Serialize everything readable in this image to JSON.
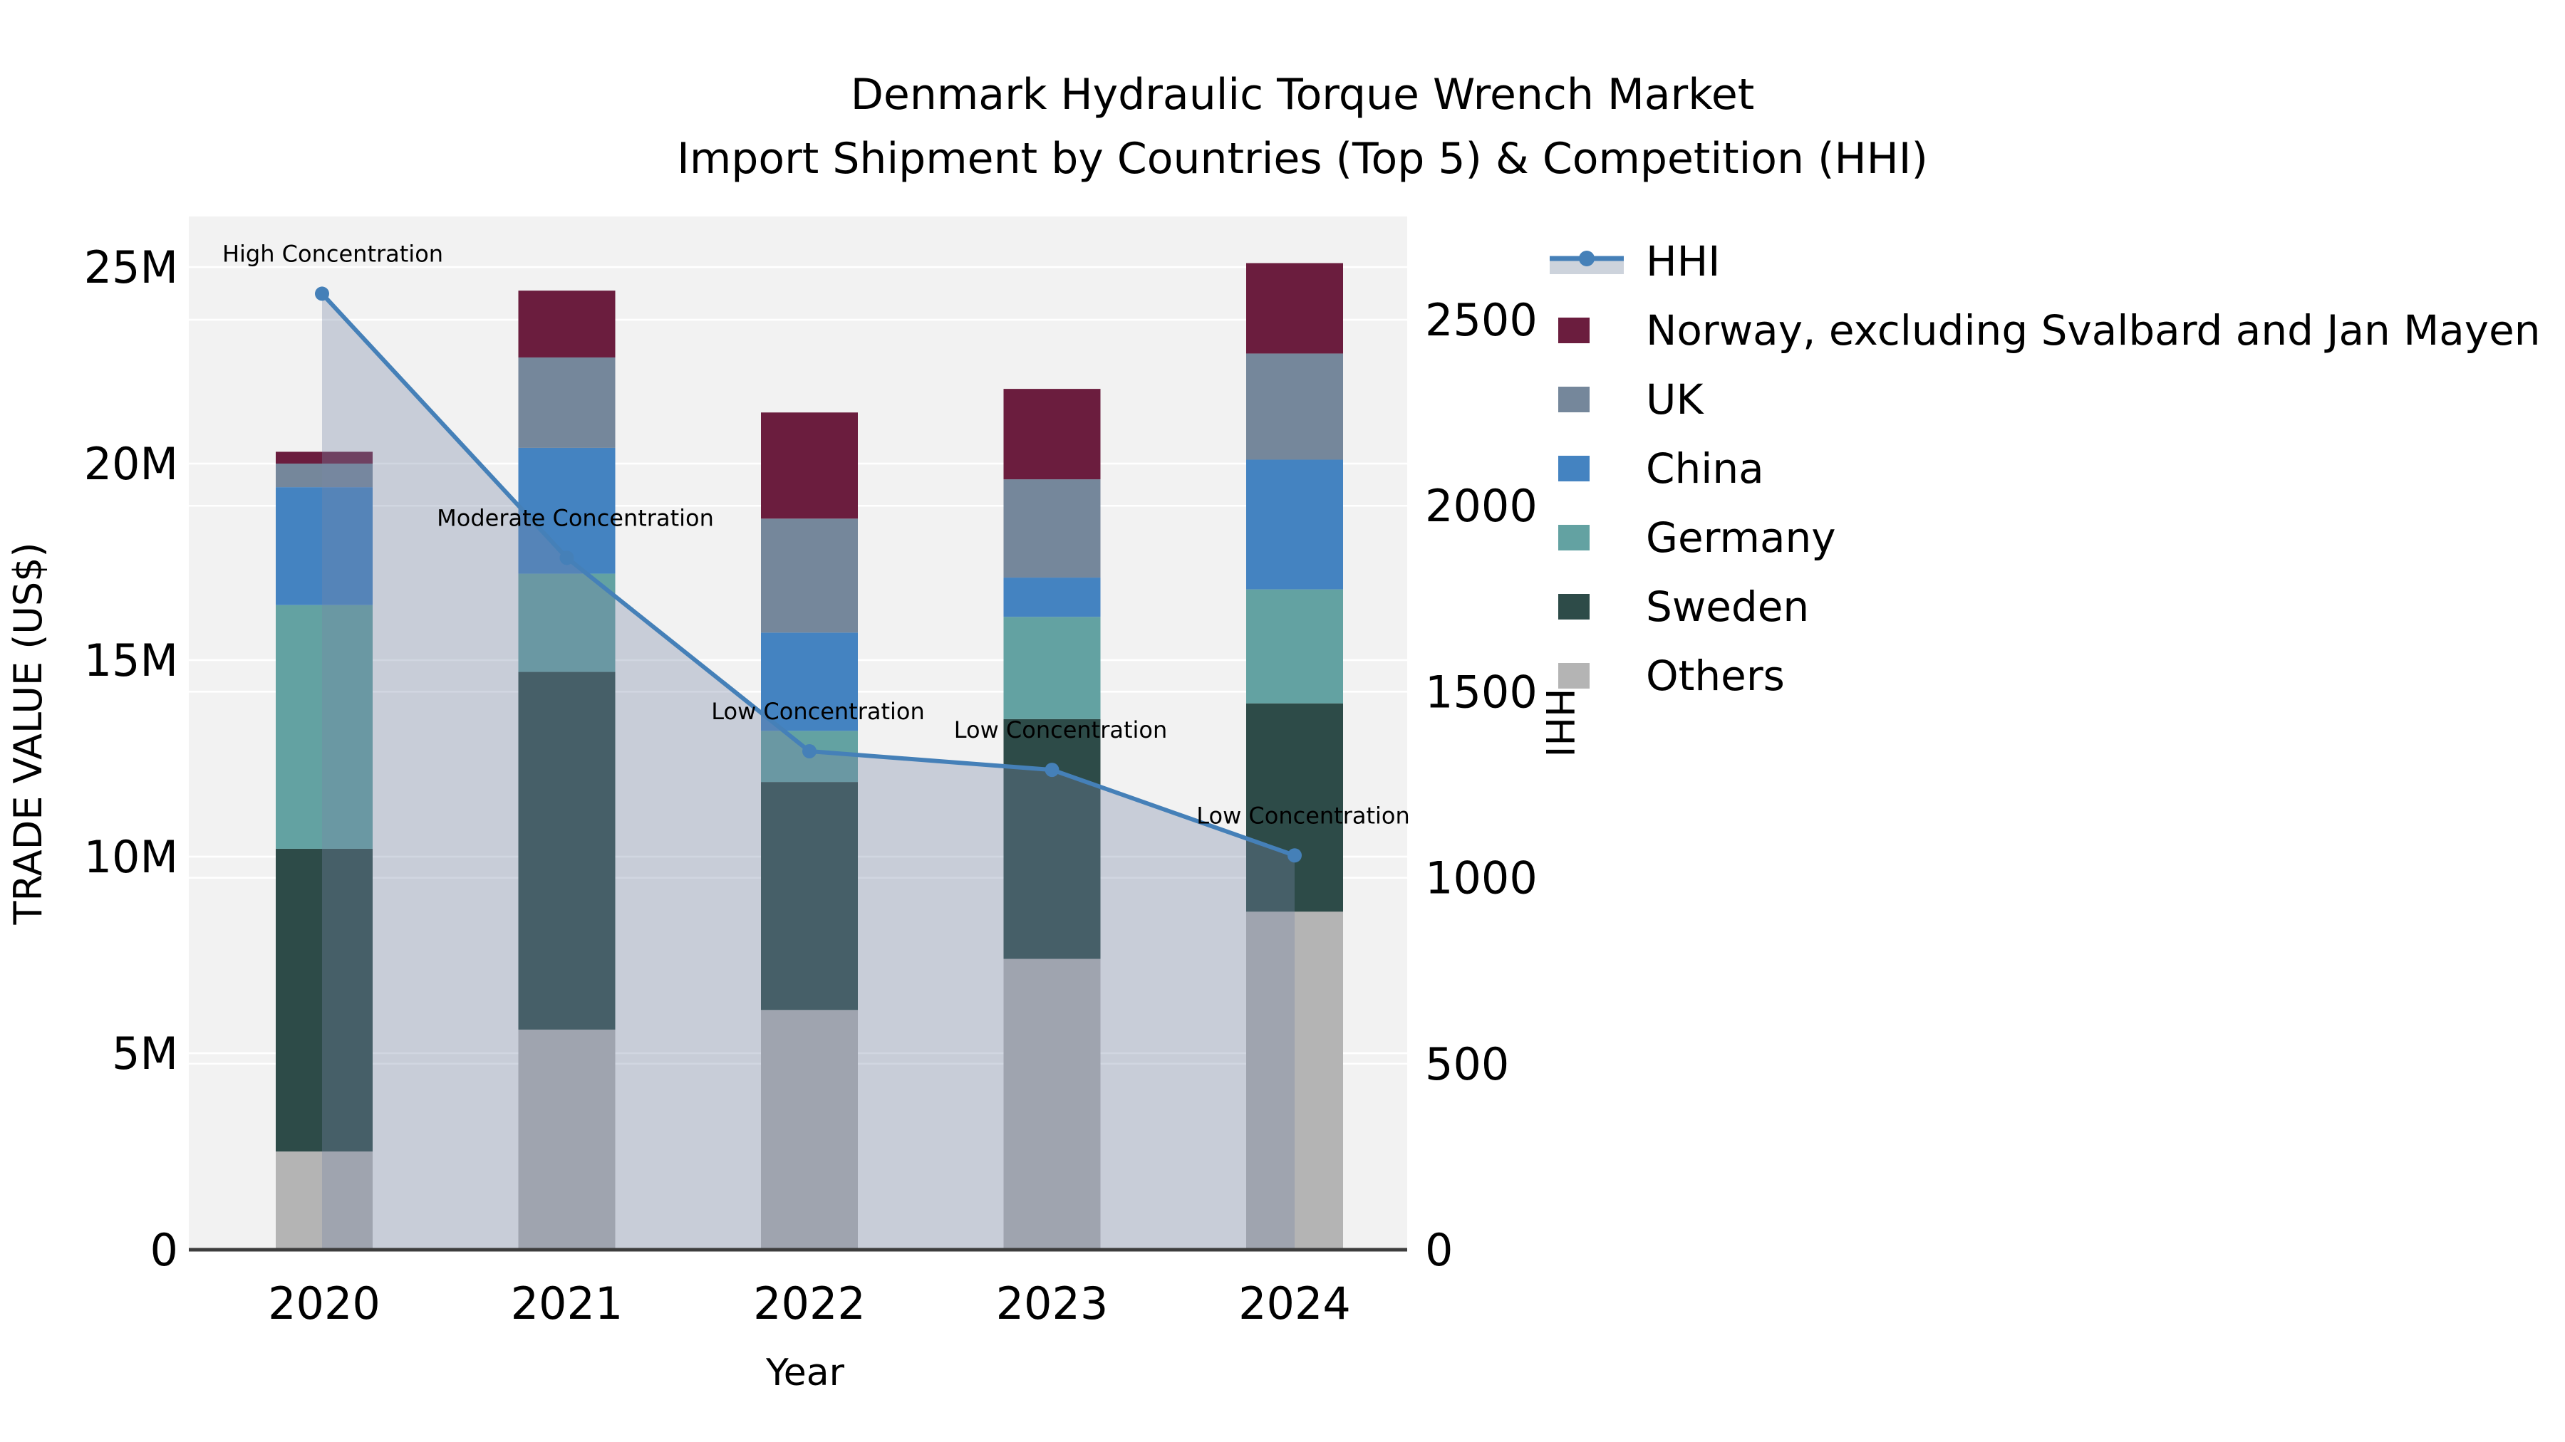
{
  "title": {
    "line1": "Denmark Hydraulic Torque Wrench Market",
    "line2": "Import Shipment by Countries (Top 5) & Competition (HHI)"
  },
  "axes": {
    "left": {
      "title": "TRADE VALUE (US$)",
      "tick_labels": [
        "0",
        "5M",
        "10M",
        "15M",
        "20M",
        "25M"
      ],
      "tick_values_musd": [
        0,
        5,
        10,
        15,
        20,
        25
      ],
      "range_musd": [
        0,
        26.3
      ]
    },
    "right": {
      "title": "HHI",
      "tick_labels": [
        "0",
        "500",
        "1000",
        "1500",
        "2000",
        "2500"
      ],
      "tick_values": [
        0,
        500,
        1000,
        1500,
        2000,
        2500
      ],
      "range": [
        0,
        2776
      ]
    },
    "x": {
      "title": "Year"
    }
  },
  "chart_data": {
    "type": "bar+line",
    "categories": [
      "2020",
      "2021",
      "2022",
      "2023",
      "2024"
    ],
    "bar_value_unit": "million US$",
    "stack_order_note": "series listed bottom-to-top of stack",
    "series": [
      {
        "name": "Others",
        "color": "#b4b4b4",
        "values": [
          2.5,
          5.6,
          6.1,
          7.4,
          8.6
        ]
      },
      {
        "name": "Sweden",
        "color": "#2d4b48",
        "values": [
          7.7,
          9.1,
          5.8,
          6.1,
          5.3
        ]
      },
      {
        "name": "Germany",
        "color": "#63a2a2",
        "values": [
          6.2,
          2.5,
          1.3,
          2.6,
          2.9
        ]
      },
      {
        "name": "China",
        "color": "#4483c1",
        "values": [
          3.0,
          3.2,
          2.5,
          1.0,
          3.3
        ]
      },
      {
        "name": "UK",
        "color": "#75879b",
        "values": [
          0.6,
          2.3,
          2.9,
          2.5,
          2.7
        ]
      },
      {
        "name": "Norway, excluding Svalbard and Jan Mayen",
        "color": "#6b1d3e",
        "values": [
          0.3,
          1.7,
          2.7,
          2.3,
          2.3
        ]
      }
    ],
    "line_series": {
      "name": "HHI",
      "color": "#4580b8",
      "area_fill": "rgba(119,136,166,0.34)",
      "values": [
        2570,
        1860,
        1340,
        1290,
        1060
      ]
    },
    "annotations": [
      {
        "x": "2020",
        "label": "High Concentration"
      },
      {
        "x": "2021",
        "label": "Moderate Concentration"
      },
      {
        "x": "2022",
        "label": "Low Concentration"
      },
      {
        "x": "2023",
        "label": "Low Concentration"
      },
      {
        "x": "2024",
        "label": "Low Concentration"
      }
    ],
    "legend": [
      {
        "label": "HHI",
        "type": "line",
        "color": "#4580b8",
        "band_color": "#cdd3dc"
      },
      {
        "label": "Norway, excluding Svalbard and Jan Mayen",
        "type": "swatch",
        "color": "#6b1d3e"
      },
      {
        "label": "UK",
        "type": "swatch",
        "color": "#75879b"
      },
      {
        "label": "China",
        "type": "swatch",
        "color": "#4483c1"
      },
      {
        "label": "Germany",
        "type": "swatch",
        "color": "#63a2a2"
      },
      {
        "label": "Sweden",
        "type": "swatch",
        "color": "#2d4b48"
      },
      {
        "label": "Others",
        "type": "swatch",
        "color": "#b4b4b4"
      }
    ],
    "layout": {
      "plot_bg": "#f2f2f2",
      "gridline_color": "#ffffff",
      "axis_line_color": "#3d3d3d",
      "grid_on": true,
      "legend_position": "right"
    }
  }
}
